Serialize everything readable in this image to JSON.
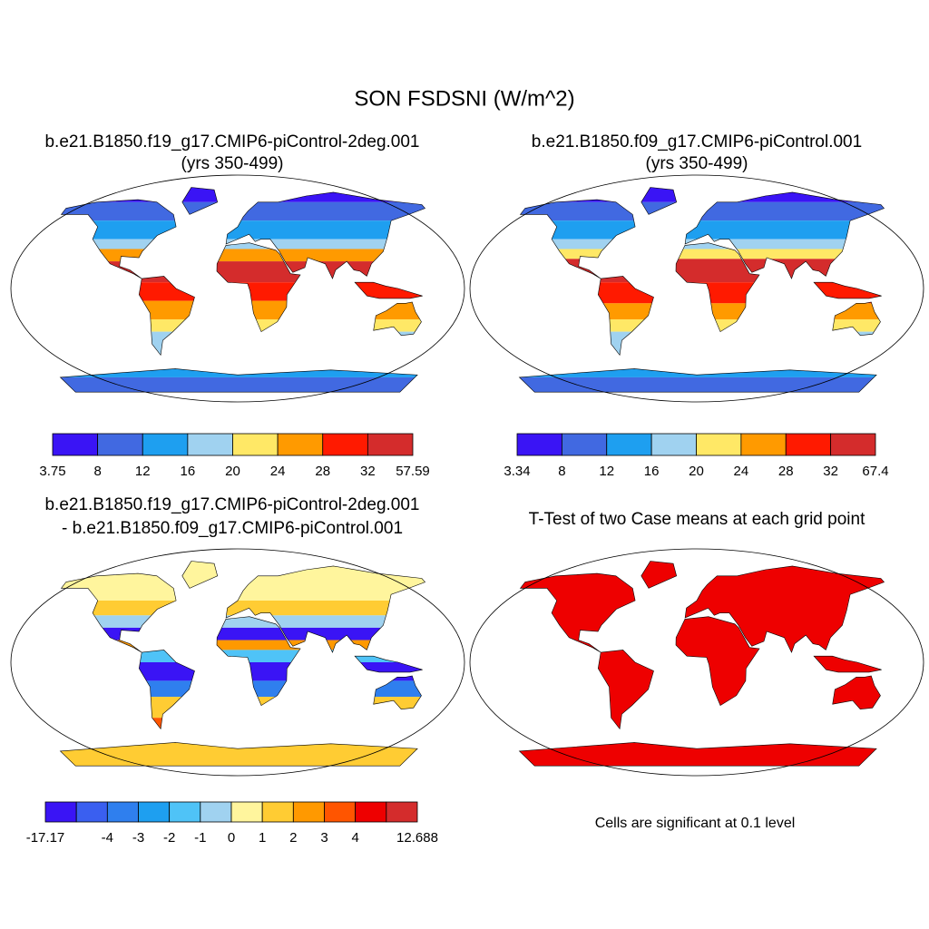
{
  "title": "SON FSDSNI (W/m^2)",
  "panels": [
    {
      "title": [
        "b.e21.B1850.f19_g17.CMIP6-piControl-2deg.001",
        "(yrs 350-499)"
      ],
      "colorbar": {
        "colors": [
          "#3a14f5",
          "#4169e1",
          "#1e9ff0",
          "#a0d2f0",
          "#ffe866",
          "#ff9a00",
          "#ff1a00",
          "#d42c2c"
        ],
        "labels": [
          3.75,
          8,
          12,
          16,
          20,
          24,
          28,
          32,
          57.59
        ]
      }
    },
    {
      "title": [
        "b.e21.B1850.f09_g17.CMIP6-piControl.001",
        "(yrs 350-499)"
      ],
      "colorbar": {
        "colors": [
          "#3a14f5",
          "#4169e1",
          "#1e9ff0",
          "#a0d2f0",
          "#ffe866",
          "#ff9a00",
          "#ff1a00",
          "#d42c2c"
        ],
        "labels": [
          3.34,
          8,
          12,
          16,
          20,
          24,
          28,
          32,
          67.4
        ]
      }
    },
    {
      "title": [
        "b.e21.B1850.f19_g17.CMIP6-piControl-2deg.001",
        "- b.e21.B1850.f09_g17.CMIP6-piControl.001"
      ],
      "colorbar": {
        "colors": [
          "#3a14f5",
          "#3a5ff0",
          "#2f7fee",
          "#1e9ff0",
          "#4fc3f7",
          "#a0d2f0",
          "#fff59d",
          "#ffcc33",
          "#ff9900",
          "#ff5500",
          "#ee0000",
          "#d42c2c"
        ],
        "labels": [
          -17.17,
          null,
          -4,
          -3,
          -2,
          -1,
          0,
          1,
          2,
          3,
          4,
          null,
          12.688
        ]
      }
    },
    {
      "title": [
        "T-Test of two Case means at each grid point"
      ],
      "note": "Cells are significant at 0.1 level"
    }
  ]
}
